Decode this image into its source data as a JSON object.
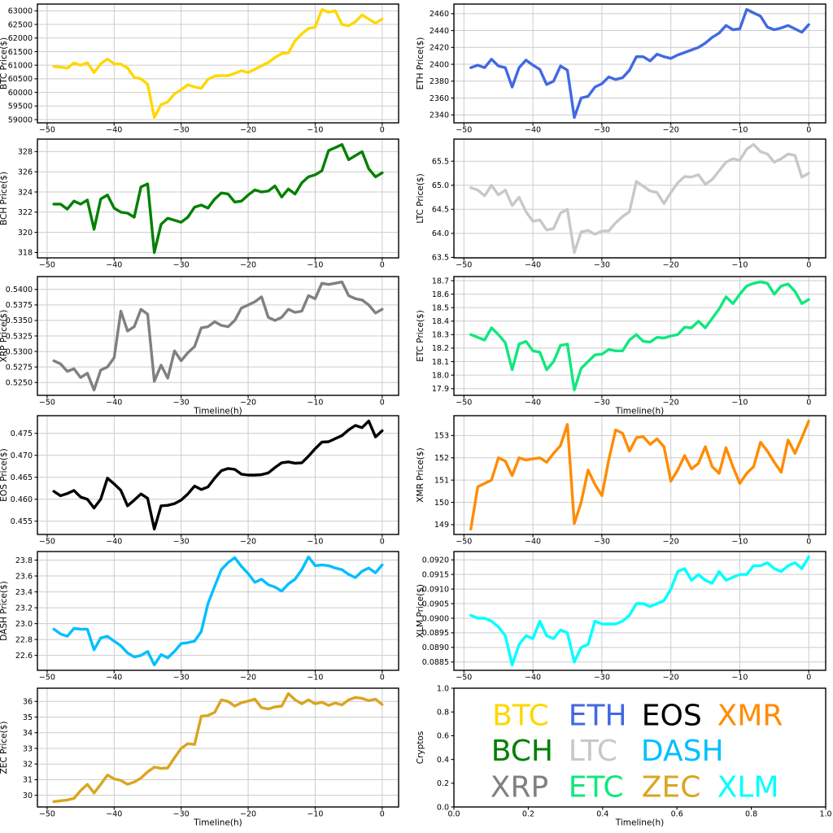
{
  "chart_data": {
    "type": "line",
    "grid": true,
    "legend_position": "bottom-right-panel",
    "x_label": "Timeline(h)",
    "x_lim": [
      -51.45,
      2.45
    ],
    "x_ticks": {
      "values": [
        -50,
        -40,
        -30,
        -20,
        -10,
        0
      ],
      "labels": [
        "−50",
        "−40",
        "−30",
        "−20",
        "−10",
        "0"
      ]
    },
    "x_values": [
      -49,
      -48,
      -47,
      -46,
      -45,
      -44,
      -43,
      -42,
      -41,
      -40,
      -39,
      -38,
      -37,
      -36,
      -35,
      -34,
      -33,
      -32,
      -31,
      -30,
      -29,
      -28,
      -27,
      -26,
      -25,
      -24,
      -23,
      -22,
      -21,
      -20,
      -19,
      -18,
      -17,
      -16,
      -15,
      -14,
      -13,
      -12,
      -11,
      -10,
      -9,
      -8,
      -7,
      -6,
      -5,
      -4,
      -3,
      -2,
      -1,
      0
    ],
    "charts": [
      {
        "id": "btc",
        "name": "BTC",
        "row": 0,
        "col": 0,
        "color": "#FFD700",
        "y_label": "BTC Price($)",
        "x_axis_label": "",
        "y_lim": [
          58881,
          63249
        ],
        "y_ticks": {
          "values": [
            59000,
            59500,
            60000,
            60500,
            61000,
            61500,
            62000,
            62500,
            63000
          ],
          "labels": [
            "59000",
            "59500",
            "60000",
            "60500",
            "61000",
            "61500",
            "62000",
            "62500",
            "63000"
          ]
        },
        "values": [
          60950,
          60930,
          60890,
          61080,
          61000,
          61090,
          60730,
          61050,
          61230,
          61050,
          61040,
          60900,
          60550,
          60500,
          60300,
          59080,
          59550,
          59650,
          59950,
          60100,
          60280,
          60200,
          60150,
          60480,
          60600,
          60620,
          60620,
          60700,
          60800,
          60730,
          60850,
          60980,
          61100,
          61280,
          61430,
          61450,
          61900,
          62150,
          62350,
          62400,
          63050,
          62950,
          63000,
          62500,
          62450,
          62600,
          62850,
          62700,
          62550,
          62700
        ]
      },
      {
        "id": "eth",
        "name": "ETH",
        "row": 0,
        "col": 1,
        "color": "#4169E1",
        "y_label": "ETH  Price($)",
        "x_axis_label": "",
        "y_lim": [
          2330.6,
          2471.4
        ],
        "y_ticks": {
          "values": [
            2340,
            2360,
            2380,
            2400,
            2420,
            2440,
            2460
          ],
          "labels": [
            "2340",
            "2360",
            "2380",
            "2400",
            "2420",
            "2440",
            "2460"
          ]
        },
        "values": [
          2396,
          2399,
          2396,
          2406,
          2398,
          2396,
          2373,
          2396,
          2405,
          2399,
          2394,
          2376,
          2380,
          2398,
          2393,
          2337,
          2360,
          2362,
          2373,
          2377,
          2385,
          2382,
          2384,
          2393,
          2409,
          2409,
          2404,
          2412,
          2409,
          2407,
          2411,
          2414,
          2417,
          2420,
          2425,
          2432,
          2437,
          2446,
          2441,
          2442,
          2465,
          2461,
          2457,
          2444,
          2441,
          2443,
          2446,
          2442,
          2438,
          2447
        ]
      },
      {
        "id": "bch",
        "name": "BCH",
        "row": 1,
        "col": 0,
        "color": "#008000",
        "y_label": "BCH Price($)",
        "x_axis_label": "",
        "y_lim": [
          317.47,
          329.24
        ],
        "y_ticks": {
          "values": [
            318,
            320,
            322,
            324,
            326,
            328
          ],
          "labels": [
            "318",
            "320",
            "322",
            "324",
            "326",
            "328"
          ]
        },
        "values": [
          322.8,
          322.8,
          322.3,
          323.1,
          322.8,
          323.2,
          320.3,
          323.3,
          323.7,
          322.4,
          322.0,
          321.9,
          321.5,
          324.5,
          324.8,
          318.0,
          320.8,
          321.4,
          321.2,
          321.0,
          321.5,
          322.5,
          322.7,
          322.4,
          323.3,
          323.9,
          323.8,
          323.0,
          323.1,
          323.7,
          324.2,
          324.0,
          324.1,
          324.6,
          323.5,
          324.3,
          323.8,
          324.9,
          325.5,
          325.7,
          326.1,
          328.1,
          328.4,
          328.7,
          327.2,
          327.6,
          328.0,
          326.3,
          325.5,
          325.9
        ]
      },
      {
        "id": "ltc",
        "name": "LTC",
        "row": 1,
        "col": 1,
        "color": "#C8C8C8",
        "y_label": "LTC  Price($)",
        "x_axis_label": "",
        "y_lim": [
          63.49,
          65.96
        ],
        "y_ticks": {
          "values": [
            63.5,
            64.0,
            64.5,
            65.0,
            65.5
          ],
          "labels": [
            "63.5",
            "64.0",
            "64.5",
            "65.0",
            "65.5"
          ]
        },
        "values": [
          64.95,
          64.9,
          64.78,
          65.0,
          64.8,
          64.9,
          64.58,
          64.75,
          64.45,
          64.25,
          64.28,
          64.07,
          64.1,
          64.42,
          64.5,
          63.6,
          64.03,
          64.06,
          63.98,
          64.05,
          64.05,
          64.22,
          64.35,
          64.45,
          65.08,
          64.98,
          64.88,
          64.85,
          64.62,
          64.85,
          65.05,
          65.18,
          65.17,
          65.22,
          65.02,
          65.12,
          65.3,
          65.48,
          65.55,
          65.52,
          65.75,
          65.85,
          65.7,
          65.65,
          65.48,
          65.55,
          65.65,
          65.62,
          65.17,
          65.25
        ]
      },
      {
        "id": "xrp",
        "name": "XRP",
        "row": 2,
        "col": 0,
        "color": "#808080",
        "y_label": "XRP Price($)",
        "x_axis_label": "Timeline(h)",
        "y_lim": [
          0.52293,
          0.54207
        ],
        "y_ticks": {
          "values": [
            0.525,
            0.5275,
            0.53,
            0.5325,
            0.535,
            0.5375,
            0.54
          ],
          "labels": [
            "0.5250",
            "0.5275",
            "0.5300",
            "0.5325",
            "0.5350",
            "0.5375",
            "0.5400"
          ]
        },
        "values": [
          0.5285,
          0.528,
          0.5268,
          0.5272,
          0.5258,
          0.5265,
          0.5238,
          0.527,
          0.5275,
          0.529,
          0.5365,
          0.5333,
          0.534,
          0.5368,
          0.536,
          0.5252,
          0.5278,
          0.5257,
          0.5301,
          0.5285,
          0.5298,
          0.5308,
          0.5338,
          0.534,
          0.5348,
          0.5342,
          0.534,
          0.535,
          0.537,
          0.5375,
          0.538,
          0.5388,
          0.5355,
          0.535,
          0.5355,
          0.5368,
          0.5363,
          0.5365,
          0.539,
          0.5385,
          0.541,
          0.5408,
          0.541,
          0.5412,
          0.539,
          0.5385,
          0.5383,
          0.5375,
          0.5362,
          0.5368
        ]
      },
      {
        "id": "etc",
        "name": "ETC",
        "row": 2,
        "col": 1,
        "color": "#0FE87E",
        "y_label": "ETC  Price($)",
        "x_axis_label": "Timeline(h)",
        "y_lim": [
          17.85,
          18.73
        ],
        "y_ticks": {
          "values": [
            17.9,
            18.0,
            18.1,
            18.2,
            18.3,
            18.4,
            18.5,
            18.6,
            18.7
          ],
          "labels": [
            "17.9",
            "18.0",
            "18.1",
            "18.2",
            "18.3",
            "18.4",
            "18.5",
            "18.6",
            "18.7"
          ]
        },
        "values": [
          18.3,
          18.28,
          18.26,
          18.35,
          18.3,
          18.24,
          18.04,
          18.23,
          18.25,
          18.18,
          18.17,
          18.04,
          18.1,
          18.22,
          18.23,
          17.89,
          18.05,
          18.1,
          18.15,
          18.155,
          18.19,
          18.18,
          18.18,
          18.26,
          18.3,
          18.25,
          18.245,
          18.28,
          18.275,
          18.29,
          18.3,
          18.355,
          18.35,
          18.4,
          18.35,
          18.42,
          18.49,
          18.58,
          18.53,
          18.6,
          18.66,
          18.68,
          18.69,
          18.68,
          18.6,
          18.66,
          18.675,
          18.62,
          18.53,
          18.56
        ]
      },
      {
        "id": "eos",
        "name": "EOS",
        "row": 3,
        "col": 0,
        "color": "#000000",
        "y_label": "EOS  Price($)",
        "x_axis_label": "",
        "y_lim": [
          0.45197,
          0.47903
        ],
        "y_ticks": {
          "values": [
            0.455,
            0.46,
            0.465,
            0.47,
            0.475
          ],
          "labels": [
            "0.455",
            "0.460",
            "0.465",
            "0.470",
            "0.475"
          ]
        },
        "values": [
          0.4618,
          0.4608,
          0.4613,
          0.462,
          0.4605,
          0.46,
          0.458,
          0.46,
          0.4648,
          0.4635,
          0.462,
          0.4585,
          0.4598,
          0.4612,
          0.4602,
          0.4532,
          0.4585,
          0.4586,
          0.459,
          0.4598,
          0.4612,
          0.463,
          0.4622,
          0.4628,
          0.4648,
          0.4665,
          0.467,
          0.4668,
          0.4657,
          0.4655,
          0.4655,
          0.4656,
          0.466,
          0.4672,
          0.4683,
          0.4685,
          0.4682,
          0.4683,
          0.4698,
          0.4715,
          0.473,
          0.4731,
          0.4738,
          0.4745,
          0.4758,
          0.4768,
          0.4763,
          0.4778,
          0.4742,
          0.4756
        ]
      },
      {
        "id": "xmr",
        "name": "XMR",
        "row": 3,
        "col": 1,
        "color": "#FF8C00",
        "y_label": "XMR  Price($)",
        "x_axis_label": "",
        "y_lim": [
          148.56,
          153.89
        ],
        "y_ticks": {
          "values": [
            149,
            150,
            151,
            152,
            153
          ],
          "labels": [
            "149",
            "150",
            "151",
            "152",
            "153"
          ]
        },
        "values": [
          148.8,
          150.7,
          150.85,
          151.0,
          152.0,
          151.85,
          151.2,
          152.0,
          151.9,
          151.95,
          152.0,
          151.8,
          152.2,
          152.55,
          153.5,
          149.05,
          150.0,
          151.45,
          150.8,
          150.3,
          151.9,
          153.25,
          153.1,
          152.3,
          152.9,
          152.95,
          152.6,
          152.85,
          152.5,
          150.95,
          151.45,
          152.1,
          151.5,
          151.75,
          152.5,
          151.6,
          151.3,
          152.45,
          151.6,
          150.85,
          151.3,
          151.6,
          152.7,
          152.3,
          151.8,
          151.35,
          152.8,
          152.2,
          152.9,
          153.65
        ]
      },
      {
        "id": "dash",
        "name": "DASH",
        "row": 4,
        "col": 0,
        "color": "#00BFFF",
        "y_label": "DASH  Price($)",
        "x_axis_label": "",
        "y_lim": [
          22.412,
          23.908
        ],
        "y_ticks": {
          "values": [
            22.6,
            22.8,
            23.0,
            23.2,
            23.4,
            23.6,
            23.8
          ],
          "labels": [
            "22.6",
            "22.8",
            "23.0",
            "23.2",
            "23.4",
            "23.6",
            "23.8"
          ]
        },
        "values": [
          22.93,
          22.87,
          22.84,
          22.94,
          22.93,
          22.93,
          22.67,
          22.82,
          22.84,
          22.78,
          22.72,
          22.63,
          22.58,
          22.6,
          22.65,
          22.48,
          22.61,
          22.57,
          22.65,
          22.75,
          22.76,
          22.78,
          22.9,
          23.25,
          23.47,
          23.68,
          23.77,
          23.83,
          23.72,
          23.63,
          23.52,
          23.56,
          23.49,
          23.46,
          23.41,
          23.5,
          23.56,
          23.68,
          23.84,
          23.73,
          23.74,
          23.73,
          23.7,
          23.68,
          23.62,
          23.58,
          23.66,
          23.7,
          23.64,
          23.74
        ]
      },
      {
        "id": "xlm",
        "name": "XLM",
        "row": 4,
        "col": 1,
        "color": "#00FFFF",
        "y_label": "XLM Price($)",
        "x_axis_label": "",
        "y_lim": [
          0.088215,
          0.092285
        ],
        "y_ticks": {
          "values": [
            0.0885,
            0.089,
            0.0895,
            0.09,
            0.0905,
            0.091,
            0.0915,
            0.092
          ],
          "labels": [
            "0.0885",
            "0.0890",
            "0.0895",
            "0.0900",
            "0.0905",
            "0.0910",
            "0.0915",
            "0.0920"
          ]
        },
        "values": [
          0.0901,
          0.09,
          0.09,
          0.0899,
          0.0897,
          0.0894,
          0.0884,
          0.0891,
          0.0894,
          0.0893,
          0.0899,
          0.0894,
          0.0893,
          0.0896,
          0.0895,
          0.0885,
          0.089,
          0.0891,
          0.0899,
          0.0898,
          0.0898,
          0.0898,
          0.0899,
          0.0901,
          0.0905,
          0.0905,
          0.0904,
          0.0905,
          0.0906,
          0.091,
          0.0916,
          0.0917,
          0.0913,
          0.0915,
          0.0913,
          0.0912,
          0.0916,
          0.0913,
          0.0914,
          0.0915,
          0.0915,
          0.0918,
          0.0918,
          0.0919,
          0.0917,
          0.0916,
          0.0918,
          0.0919,
          0.0917,
          0.0921
        ]
      },
      {
        "id": "zec",
        "name": "ZEC",
        "row": 5,
        "col": 0,
        "color": "#DAA520",
        "y_label": "ZEC Price($)",
        "x_axis_label": "Timeline(h)",
        "y_lim": [
          29.255,
          36.845
        ],
        "y_ticks": {
          "values": [
            30,
            31,
            32,
            33,
            34,
            35,
            36
          ],
          "labels": [
            "30",
            "31",
            "32",
            "33",
            "34",
            "35",
            "36"
          ]
        },
        "values": [
          29.6,
          29.65,
          29.7,
          29.8,
          30.3,
          30.7,
          30.15,
          30.7,
          31.3,
          31.05,
          30.95,
          30.7,
          30.85,
          31.1,
          31.5,
          31.8,
          31.72,
          31.75,
          32.4,
          33.0,
          33.3,
          33.25,
          35.05,
          35.1,
          35.3,
          36.1,
          36.0,
          35.7,
          35.92,
          36.02,
          36.15,
          35.6,
          35.52,
          35.65,
          35.7,
          36.5,
          36.1,
          35.85,
          36.1,
          35.85,
          35.95,
          35.75,
          35.9,
          35.78,
          36.1,
          36.25,
          36.2,
          36.05,
          36.15,
          35.8
        ]
      }
    ],
    "legend_panel": {
      "id": "legend",
      "row": 5,
      "col": 1,
      "grid": false,
      "y_label": "Cryptos",
      "x_axis_label": "Timeline(h)",
      "x_lim": [
        0,
        1
      ],
      "y_lim": [
        0,
        1
      ],
      "x_ticks": {
        "values": [
          0,
          0.2,
          0.4,
          0.6,
          0.8,
          1.0
        ],
        "labels": [
          "0.0",
          "0.2",
          "0.4",
          "0.6",
          "0.8",
          "1.0"
        ]
      },
      "y_ticks": {
        "values": [
          0,
          0.2,
          0.4,
          0.6,
          0.8,
          1.0
        ],
        "labels": [
          "0.0",
          "0.2",
          "0.4",
          "0.6",
          "0.8",
          "1.0"
        ]
      },
      "items": [
        {
          "label": "BTC",
          "color": "#FFD700",
          "x": 0.103,
          "y": 0.69
        },
        {
          "label": "ETH",
          "color": "#4169E1",
          "x": 0.308,
          "y": 0.69
        },
        {
          "label": "EOS",
          "color": "#000000",
          "x": 0.505,
          "y": 0.69
        },
        {
          "label": "XMR",
          "color": "#FF8C00",
          "x": 0.708,
          "y": 0.69
        },
        {
          "label": "BCH",
          "color": "#008000",
          "x": 0.1,
          "y": 0.39
        },
        {
          "label": "LTC",
          "color": "#C8C8C8",
          "x": 0.308,
          "y": 0.39
        },
        {
          "label": "DASH",
          "color": "#00BFFF",
          "x": 0.503,
          "y": 0.39
        },
        {
          "label": "XRP",
          "color": "#808080",
          "x": 0.098,
          "y": 0.085
        },
        {
          "label": "ETC",
          "color": "#0FE87E",
          "x": 0.308,
          "y": 0.085
        },
        {
          "label": "ZEC",
          "color": "#DAA520",
          "x": 0.505,
          "y": 0.085
        },
        {
          "label": "XLM",
          "color": "#00FFFF",
          "x": 0.708,
          "y": 0.085
        }
      ]
    }
  }
}
